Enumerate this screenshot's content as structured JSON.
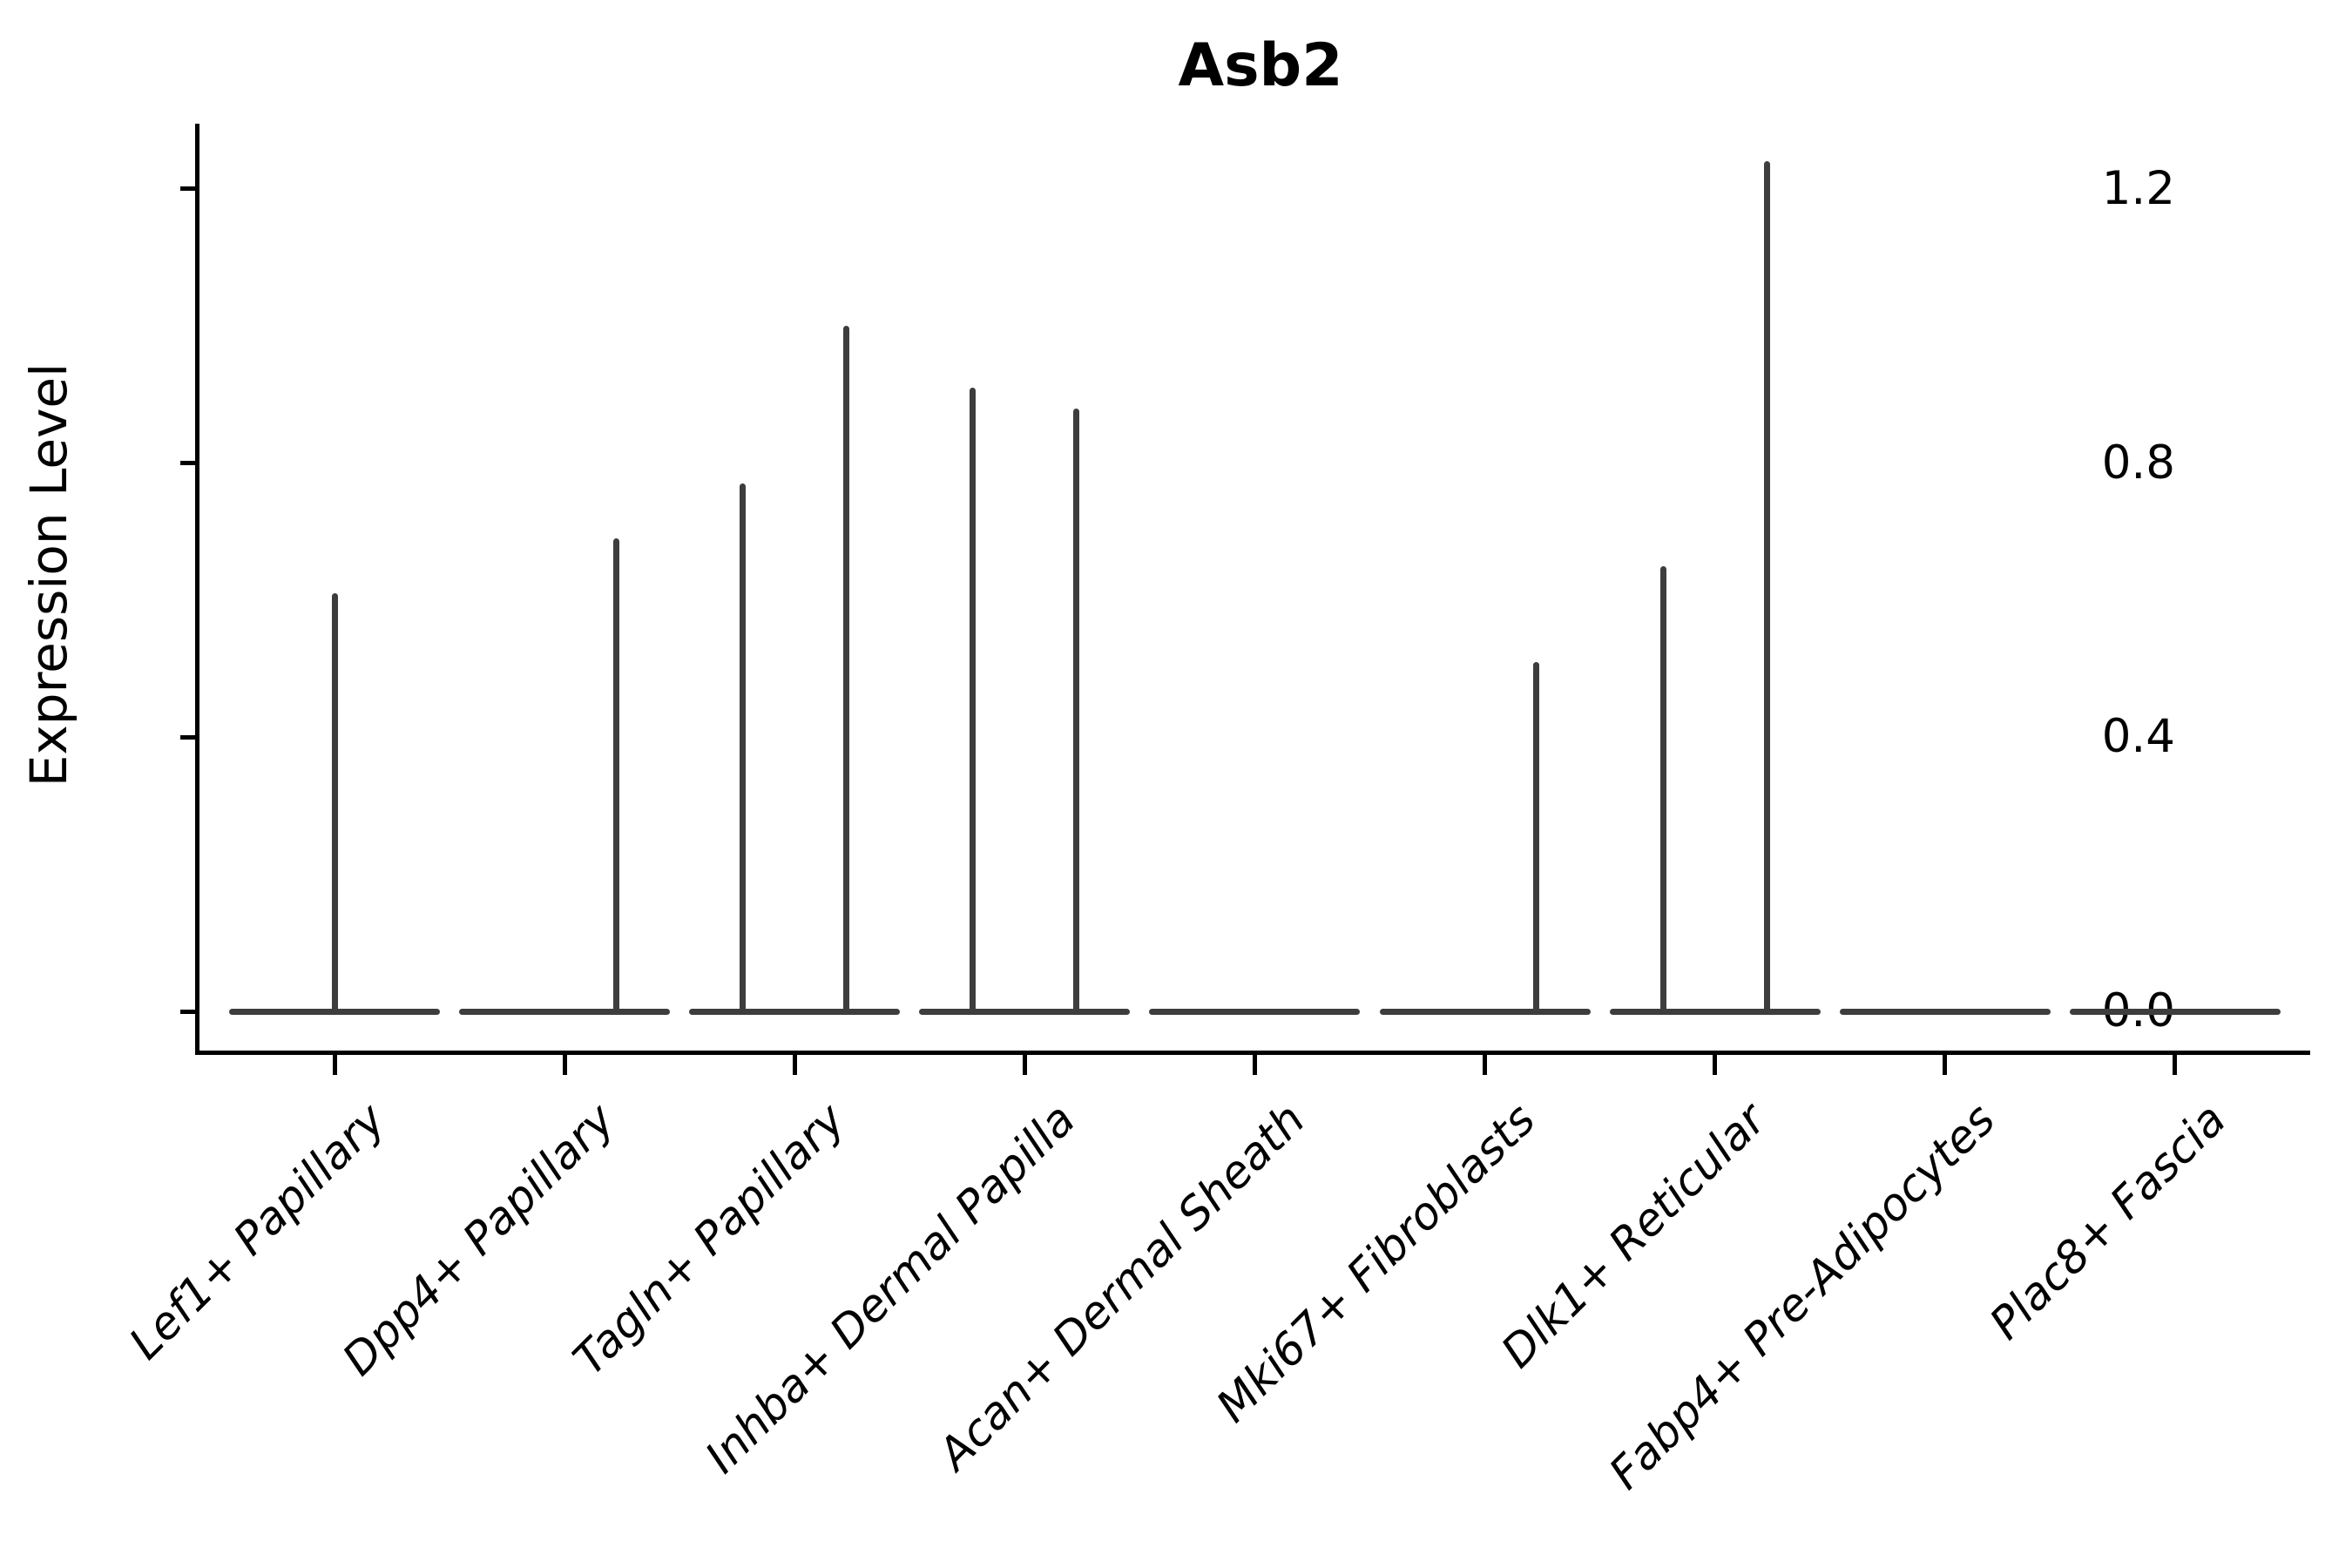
{
  "figure": {
    "background": "#ffffff"
  },
  "chart_data": {
    "type": "violin",
    "title": "Asb2",
    "ylabel": "Expression Level",
    "xlabel": "",
    "ylim": [
      0,
      1.295
    ],
    "yticks": [
      0.0,
      0.4,
      0.8,
      1.2
    ],
    "ytick_labels": [
      "0.0",
      "0.4",
      "0.8",
      "1.2"
    ],
    "grid": false,
    "legend": "none",
    "baseline_value": 0.0,
    "violin_width_frac": 0.9,
    "categories": [
      "Lef1+ Papillary",
      "Dpp4+ Papillary",
      "Tagln+ Papillary",
      "Inhba+ Dermal Papilla",
      "Acan+ Dermal Sheath",
      "Mki67+ Fibroblasts",
      "Dlk1+ Reticular",
      "Fabp4+ Pre-Adipocytes",
      "Plac8+ Fascia"
    ],
    "violins": [
      {
        "category": "Lef1+ Papillary",
        "spikes": [
          {
            "offset": 0,
            "max": 0.61
          }
        ]
      },
      {
        "category": "Dpp4+ Papillary",
        "spikes": [
          {
            "offset": 0.225,
            "max": 0.69
          }
        ]
      },
      {
        "category": "Tagln+ Papillary",
        "spikes": [
          {
            "offset": -0.225,
            "max": 0.77
          },
          {
            "offset": 0.225,
            "max": 1.0
          }
        ]
      },
      {
        "category": "Inhba+ Dermal Papilla",
        "spikes": [
          {
            "offset": -0.225,
            "max": 0.91
          },
          {
            "offset": 0.225,
            "max": 0.88
          }
        ]
      },
      {
        "category": "Acan+ Dermal Sheath",
        "spikes": []
      },
      {
        "category": "Mki67+ Fibroblasts",
        "spikes": [
          {
            "offset": 0.225,
            "max": 0.51
          }
        ]
      },
      {
        "category": "Dlk1+ Reticular",
        "spikes": [
          {
            "offset": -0.225,
            "max": 0.65
          },
          {
            "offset": 0.225,
            "max": 1.24
          }
        ]
      },
      {
        "category": "Fabp4+ Pre-Adipocytes",
        "spikes": []
      },
      {
        "category": "Plac8+ Fascia",
        "spikes": []
      }
    ],
    "colors": {
      "violin_stroke": "#3d3d3d",
      "axis": "#000000",
      "text": "#000000",
      "background": "#ffffff"
    }
  }
}
